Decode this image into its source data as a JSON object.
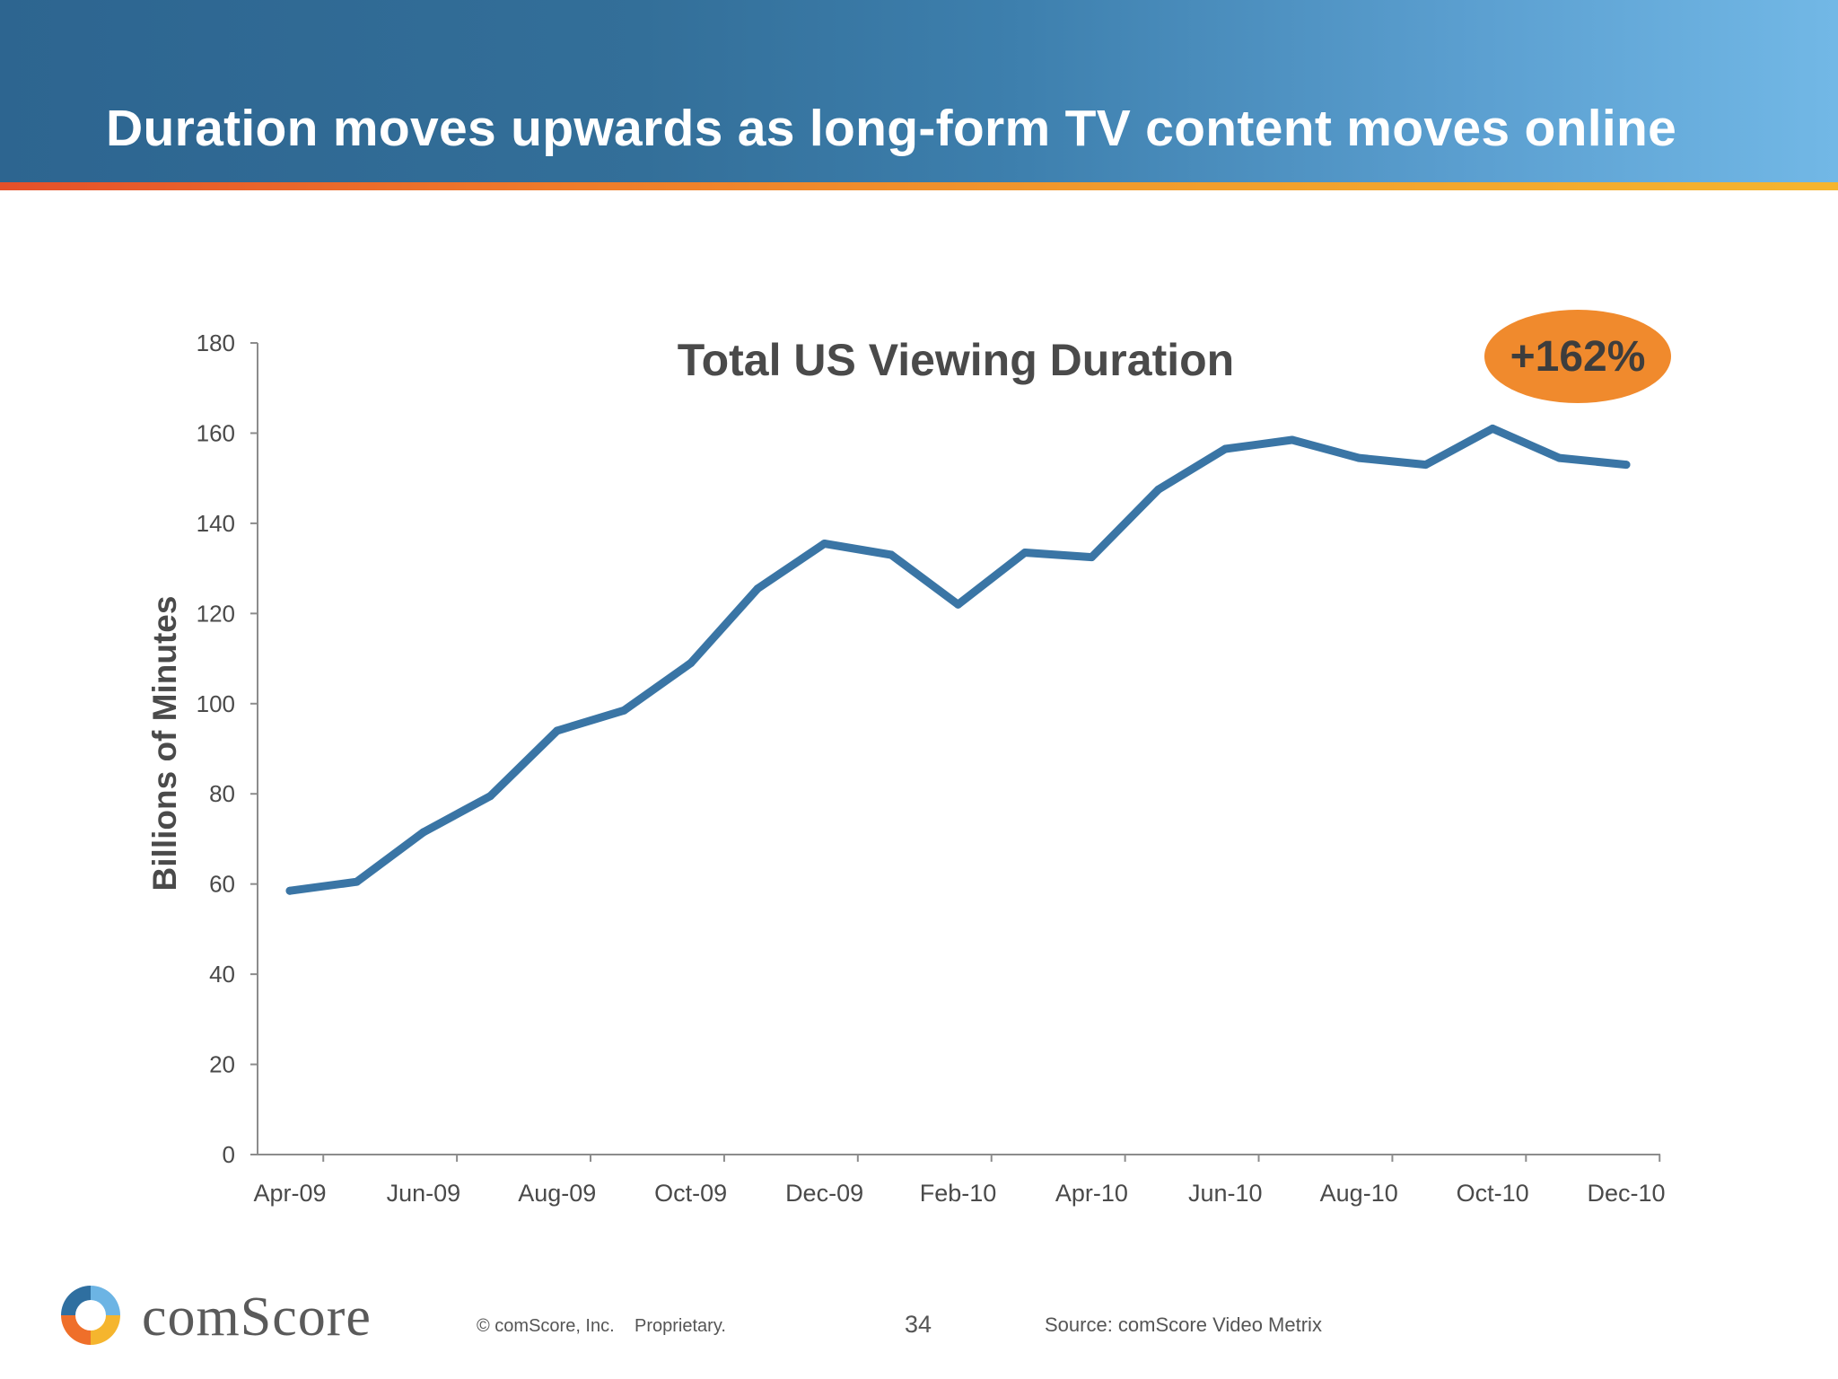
{
  "slide": {
    "title": "Duration moves upwards as long-form TV content moves online"
  },
  "chart_data": {
    "type": "line",
    "title": "Total US Viewing Duration",
    "ylabel": "Billions of Minutes",
    "xlabel": "",
    "ylim": [
      0,
      180
    ],
    "yticks": [
      0,
      20,
      40,
      60,
      80,
      100,
      120,
      140,
      160,
      180
    ],
    "xtick_labels": [
      "Apr-09",
      "Jun-09",
      "Aug-09",
      "Oct-09",
      "Dec-09",
      "Feb-10",
      "Apr-10",
      "Jun-10",
      "Aug-10",
      "Oct-10",
      "Dec-10"
    ],
    "categories": [
      "Apr-09",
      "May-09",
      "Jun-09",
      "Jul-09",
      "Aug-09",
      "Sep-09",
      "Oct-09",
      "Nov-09",
      "Dec-09",
      "Jan-10",
      "Feb-10",
      "Mar-10",
      "Apr-10",
      "May-10",
      "Jun-10",
      "Jul-10",
      "Aug-10",
      "Sep-10",
      "Oct-10",
      "Nov-10",
      "Dec-10"
    ],
    "series": [
      {
        "values": [
          58.5,
          60.5,
          71.5,
          79.5,
          94,
          98.5,
          109,
          125.5,
          135.5,
          133,
          122,
          133.5,
          132.5,
          147.5,
          156.5,
          158.5,
          154.5,
          153,
          161,
          154.5,
          153
        ],
        "color": "#3a75a5"
      }
    ],
    "annotation": {
      "text": "+162%",
      "color": "#f08a2d"
    },
    "grid": false
  },
  "footer": {
    "logo_text": "comScore",
    "copyright": "© comScore, Inc.",
    "proprietary": "Proprietary.",
    "page_number": "34",
    "source": "Source:  comScore Video Metrix"
  }
}
